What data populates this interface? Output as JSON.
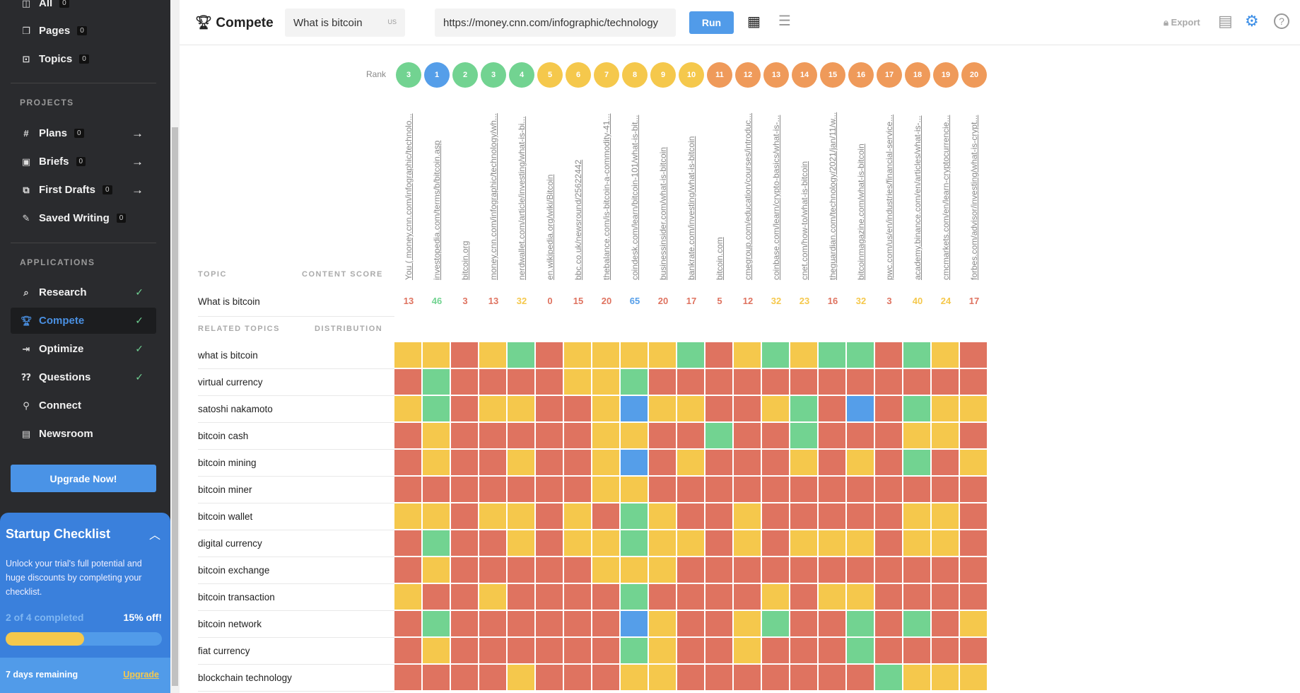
{
  "sidebar": {
    "top_items": [
      {
        "label": "All",
        "count": "0",
        "icon": "grid-icon"
      },
      {
        "label": "Pages",
        "count": "0",
        "icon": "page-icon"
      },
      {
        "label": "Topics",
        "count": "0",
        "icon": "topic-icon"
      }
    ],
    "projects_heading": "PROJECTS",
    "projects": [
      {
        "label": "Plans",
        "count": "0",
        "icon": "hash-icon"
      },
      {
        "label": "Briefs",
        "count": "0",
        "icon": "brief-icon"
      },
      {
        "label": "First Drafts",
        "count": "0",
        "icon": "drafts-icon"
      },
      {
        "label": "Saved Writing",
        "count": "0",
        "icon": "edit-icon"
      }
    ],
    "applications_heading": "APPLICATIONS",
    "applications": [
      {
        "label": "Research",
        "icon": "search-icon",
        "checked": true
      },
      {
        "label": "Compete",
        "icon": "trophy-icon",
        "checked": true,
        "active": true
      },
      {
        "label": "Optimize",
        "icon": "optimize-icon",
        "checked": true
      },
      {
        "label": "Questions",
        "icon": "questions-icon",
        "checked": true
      },
      {
        "label": "Connect",
        "icon": "link-icon",
        "checked": false
      },
      {
        "label": "Newsroom",
        "icon": "newspaper-icon",
        "checked": false
      }
    ],
    "upgrade_label": "Upgrade Now!",
    "checklist": {
      "title": "Startup Checklist",
      "description": "Unlock your trial's full potential and huge discounts by completing your checklist.",
      "progress_text": "2 of 4 completed",
      "discount": "15% off!",
      "progress_percent": 50,
      "days_remaining": "7 days remaining",
      "upgrade_link": "Upgrade"
    }
  },
  "header": {
    "title": "Compete",
    "query": "What is bitcoin",
    "country": "US",
    "url": "https://money.cnn.com/infographic/technology",
    "run_label": "Run",
    "export_label": "Export"
  },
  "table": {
    "rank_label": "Rank",
    "topic_header": "TOPIC",
    "content_score_header": "CONTENT SCORE",
    "related_header": "RELATED TOPICS",
    "distribution_header": "DISTRIBUTION",
    "topic": "What is bitcoin",
    "colors": {
      "red": "#df7360",
      "yellow": "#f5c84c",
      "green": "#72d391",
      "blue": "#559ee9",
      "orange": "#ef9a5a"
    },
    "columns": [
      {
        "rank": "3",
        "rank_color": "green",
        "url": "You ( money.cnn.com/infographic/technolo...",
        "score": "13",
        "score_color": "red"
      },
      {
        "rank": "1",
        "rank_color": "blue",
        "url": "investopedia.com/terms/b/bitcoin.asp",
        "score": "46",
        "score_color": "green"
      },
      {
        "rank": "2",
        "rank_color": "green",
        "url": "bitcoin.org",
        "score": "3",
        "score_color": "red"
      },
      {
        "rank": "3",
        "rank_color": "green",
        "url": "money.cnn.com/infographic/technology/wh...",
        "score": "13",
        "score_color": "red"
      },
      {
        "rank": "4",
        "rank_color": "green",
        "url": "nerdwallet.com/article/investing/what-is-bi...",
        "score": "32",
        "score_color": "yellow"
      },
      {
        "rank": "5",
        "rank_color": "yellow",
        "url": "en.wikipedia.org/wiki/Bitcoin",
        "score": "0",
        "score_color": "red"
      },
      {
        "rank": "6",
        "rank_color": "yellow",
        "url": "bbc.co.uk/newsround/25622442",
        "score": "15",
        "score_color": "red"
      },
      {
        "rank": "7",
        "rank_color": "yellow",
        "url": "thebalance.com/is-bitcoin-a-commodity-41...",
        "score": "20",
        "score_color": "red"
      },
      {
        "rank": "8",
        "rank_color": "yellow",
        "url": "coindesk.com/learn/bitcoin-101/what-is-bit...",
        "score": "65",
        "score_color": "blue"
      },
      {
        "rank": "9",
        "rank_color": "yellow",
        "url": "businessinsider.com/what-is-bitcoin",
        "score": "20",
        "score_color": "red"
      },
      {
        "rank": "10",
        "rank_color": "yellow",
        "url": "bankrate.com/investing/what-is-bitcoin",
        "score": "17",
        "score_color": "red"
      },
      {
        "rank": "11",
        "rank_color": "orange",
        "url": "bitcoin.com",
        "score": "5",
        "score_color": "red"
      },
      {
        "rank": "12",
        "rank_color": "orange",
        "url": "cmegroup.com/education/courses/introduc...",
        "score": "12",
        "score_color": "red"
      },
      {
        "rank": "13",
        "rank_color": "orange",
        "url": "coinbase.com/learn/crypto-basics/what-is-...",
        "score": "32",
        "score_color": "yellow"
      },
      {
        "rank": "14",
        "rank_color": "orange",
        "url": "cnet.com/how-to/what-is-bitcoin",
        "score": "23",
        "score_color": "yellow"
      },
      {
        "rank": "15",
        "rank_color": "orange",
        "url": "theguardian.com/technology/2021/jan/11/w...",
        "score": "16",
        "score_color": "red"
      },
      {
        "rank": "16",
        "rank_color": "orange",
        "url": "bitcoinmagazine.com/what-is-bitcoin",
        "score": "32",
        "score_color": "yellow"
      },
      {
        "rank": "17",
        "rank_color": "orange",
        "url": "pwc.com/us/en/industries/financial-service...",
        "score": "3",
        "score_color": "red"
      },
      {
        "rank": "18",
        "rank_color": "orange",
        "url": "academy.binance.com/en/articles/what-is-...",
        "score": "40",
        "score_color": "yellow"
      },
      {
        "rank": "19",
        "rank_color": "orange",
        "url": "cmcmarkets.com/en/learn-cryptocurrencie...",
        "score": "24",
        "score_color": "yellow"
      },
      {
        "rank": "20",
        "rank_color": "orange",
        "url": "forbes.com/advisor/investing/what-is-crypt...",
        "score": "17",
        "score_color": "red"
      }
    ],
    "related_topics": [
      {
        "label": "what is bitcoin",
        "cells": "YYRYGRYYYYGRYGYGGRGYR"
      },
      {
        "label": "virtual currency",
        "cells": "RGRRRRYYGRRRRRRRRRRRR"
      },
      {
        "label": "satoshi nakamoto",
        "cells": "YGRYYRRYBYYRRYGRBRGYY"
      },
      {
        "label": "bitcoin cash",
        "cells": "RYRRRRRYYRRGRRGRRRYYR"
      },
      {
        "label": "bitcoin mining",
        "cells": "RYRRYRRYBRYRRRYRYRGRY"
      },
      {
        "label": "bitcoin miner",
        "cells": "RRRRRRRYYRRRRRRRRRRRR"
      },
      {
        "label": "bitcoin wallet",
        "cells": "YYRYYRYRGYRRYRRRRRYYR"
      },
      {
        "label": "digital currency",
        "cells": "RGRRYRYYGYYRYRYYYRYYR"
      },
      {
        "label": "bitcoin exchange",
        "cells": "RYRRRRRYYYRRRRRRRRRRR"
      },
      {
        "label": "bitcoin transaction",
        "cells": "YRRYRRRRGRRRRYRYYRRRR"
      },
      {
        "label": "bitcoin network",
        "cells": "RGRRRRRRBYRRYGRRGRGRY"
      },
      {
        "label": "fiat currency",
        "cells": "RYRRRRRRGYRRYRRRGRRRR"
      },
      {
        "label": "blockchain technology",
        "cells": "RRRRYRRRYYRRRRRRRGYYY"
      }
    ],
    "cell_legend": {
      "R": "red",
      "Y": "yellow",
      "G": "green",
      "B": "blue"
    }
  }
}
